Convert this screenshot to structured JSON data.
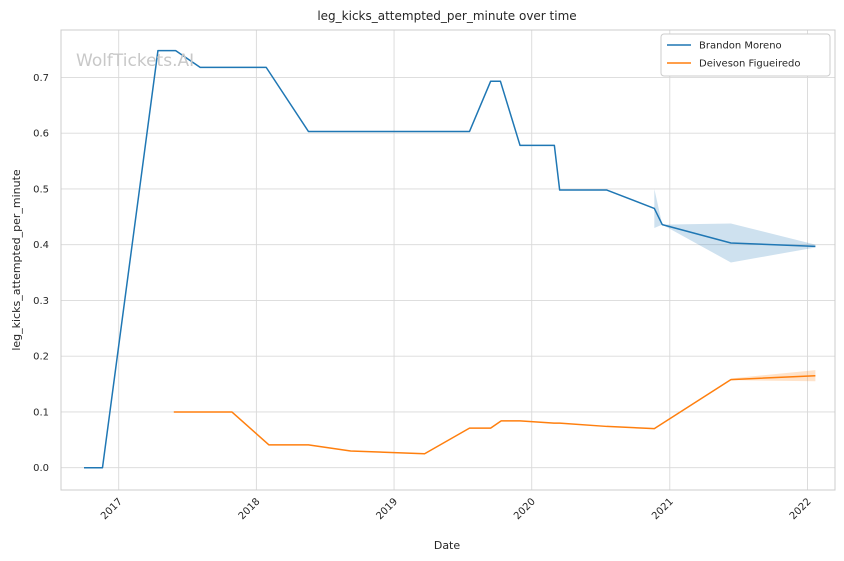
{
  "chart_data": {
    "type": "line",
    "title": "leg_kicks_attempted_per_minute over time",
    "xlabel": "Date",
    "ylabel": "leg_kicks_attempted_per_minute",
    "watermark": "WolfTickets.AI",
    "xlim": [
      "2016-08-01",
      "2022-03-15"
    ],
    "ylim": [
      -0.04,
      0.785
    ],
    "x_ticks": [
      "2017-01-01",
      "2018-01-01",
      "2019-01-01",
      "2020-01-01",
      "2021-01-01",
      "2022-01-01"
    ],
    "x_tick_labels": [
      "2017",
      "2018",
      "2019",
      "2020",
      "2021",
      "2022"
    ],
    "y_ticks": [
      0.0,
      0.1,
      0.2,
      0.3,
      0.4,
      0.5,
      0.6,
      0.7
    ],
    "y_tick_labels": [
      "0.0",
      "0.1",
      "0.2",
      "0.3",
      "0.4",
      "0.5",
      "0.6",
      "0.7"
    ],
    "grid": true,
    "legend_position": "top-right",
    "series": [
      {
        "name": "Brandon Moreno",
        "color": "#1f77b4",
        "points": [
          [
            "2016-10-01",
            0.0
          ],
          [
            "2016-11-19",
            0.0
          ],
          [
            "2017-04-15",
            0.748
          ],
          [
            "2017-06-01",
            0.748
          ],
          [
            "2017-08-05",
            0.718
          ],
          [
            "2017-12-30",
            0.718
          ],
          [
            "2018-01-27",
            0.718
          ],
          [
            "2018-05-19",
            0.603
          ],
          [
            "2019-07-20",
            0.603
          ],
          [
            "2019-09-14",
            0.693
          ],
          [
            "2019-10-10",
            0.693
          ],
          [
            "2019-12-01",
            0.578
          ],
          [
            "2020-03-01",
            0.578
          ],
          [
            "2020-03-15",
            0.498
          ],
          [
            "2020-07-18",
            0.498
          ],
          [
            "2020-11-21",
            0.465
          ],
          [
            "2020-12-12",
            0.436
          ],
          [
            "2021-06-12",
            0.403
          ],
          [
            "2022-01-22",
            0.397
          ]
        ],
        "band": [
          [
            "2020-11-21",
            0.43,
            0.5
          ],
          [
            "2020-12-12",
            0.436,
            0.436
          ],
          [
            "2021-06-12",
            0.368,
            0.438
          ],
          [
            "2022-01-22",
            0.395,
            0.4
          ]
        ]
      },
      {
        "name": "Deiveson Figueiredo",
        "color": "#ff7f0e",
        "points": [
          [
            "2017-05-27",
            0.1
          ],
          [
            "2017-10-28",
            0.1
          ],
          [
            "2018-02-03",
            0.041
          ],
          [
            "2018-05-19",
            0.041
          ],
          [
            "2018-09-08",
            0.03
          ],
          [
            "2019-03-23",
            0.025
          ],
          [
            "2019-07-20",
            0.071
          ],
          [
            "2019-09-14",
            0.071
          ],
          [
            "2019-10-12",
            0.084
          ],
          [
            "2019-12-01",
            0.084
          ],
          [
            "2020-02-29",
            0.08
          ],
          [
            "2020-03-15",
            0.08
          ],
          [
            "2020-07-18",
            0.074
          ],
          [
            "2020-11-21",
            0.07
          ],
          [
            "2021-06-12",
            0.158
          ],
          [
            "2022-01-22",
            0.165
          ]
        ],
        "band": [
          [
            "2021-06-12",
            0.157,
            0.16
          ],
          [
            "2022-01-22",
            0.155,
            0.175
          ]
        ]
      }
    ]
  }
}
